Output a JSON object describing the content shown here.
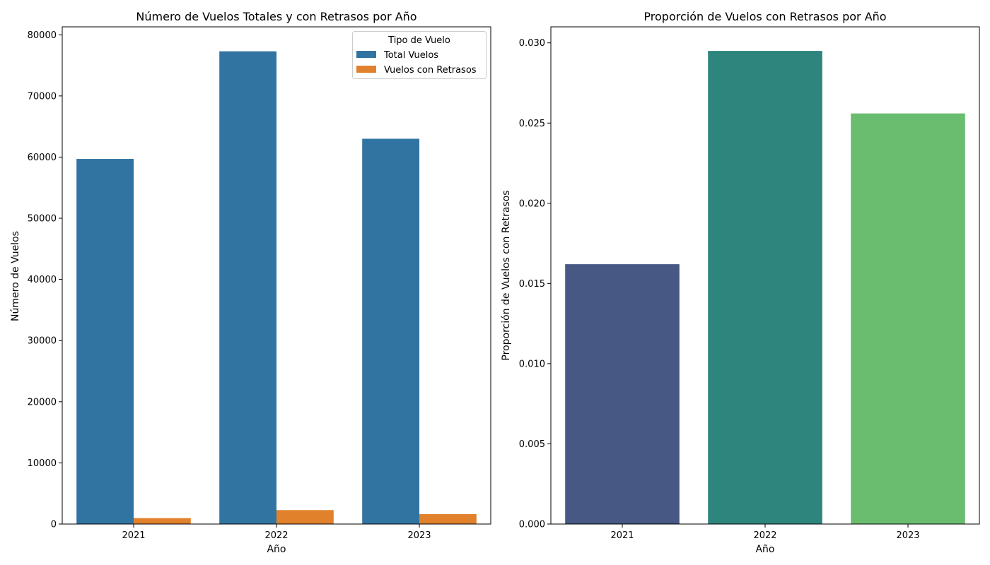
{
  "chart_data": [
    {
      "type": "bar",
      "title": "Número de Vuelos Totales y con Retrasos por Año",
      "xlabel": "Año",
      "ylabel": "Número de Vuelos",
      "categories": [
        "2021",
        "2022",
        "2023"
      ],
      "ylim": [
        0,
        81300
      ],
      "yticks": [
        0,
        10000,
        20000,
        30000,
        40000,
        50000,
        60000,
        70000,
        80000
      ],
      "ytick_labels": [
        "0",
        "10000",
        "20000",
        "30000",
        "40000",
        "50000",
        "60000",
        "70000",
        "80000"
      ],
      "grid": false,
      "legend": {
        "title": "Tipo de Vuelo",
        "placement": "top-right"
      },
      "series": [
        {
          "name": "Total Vuelos",
          "color": "#3274a1",
          "values": [
            59700,
            77300,
            63000
          ]
        },
        {
          "name": "Vuelos con Retrasos",
          "color": "#e1812c",
          "values": [
            970,
            2280,
            1620
          ]
        }
      ]
    },
    {
      "type": "bar",
      "title": "Proporción de Vuelos con Retrasos por Año",
      "xlabel": "Año",
      "ylabel": "Proporción de Vuelos con Retrasos",
      "categories": [
        "2021",
        "2022",
        "2023"
      ],
      "ylim": [
        0,
        0.031
      ],
      "yticks": [
        0,
        0.005,
        0.01,
        0.015,
        0.02,
        0.025,
        0.03
      ],
      "ytick_labels": [
        "0.000",
        "0.005",
        "0.010",
        "0.015",
        "0.020",
        "0.025",
        "0.030"
      ],
      "grid": false,
      "values": [
        0.0162,
        0.0295,
        0.0256
      ],
      "colors": [
        "#450559",
        "#21918c",
        "#5ec962"
      ],
      "bar_colors": [
        "#465883",
        "#2e857e",
        "#6abd6f"
      ]
    }
  ]
}
